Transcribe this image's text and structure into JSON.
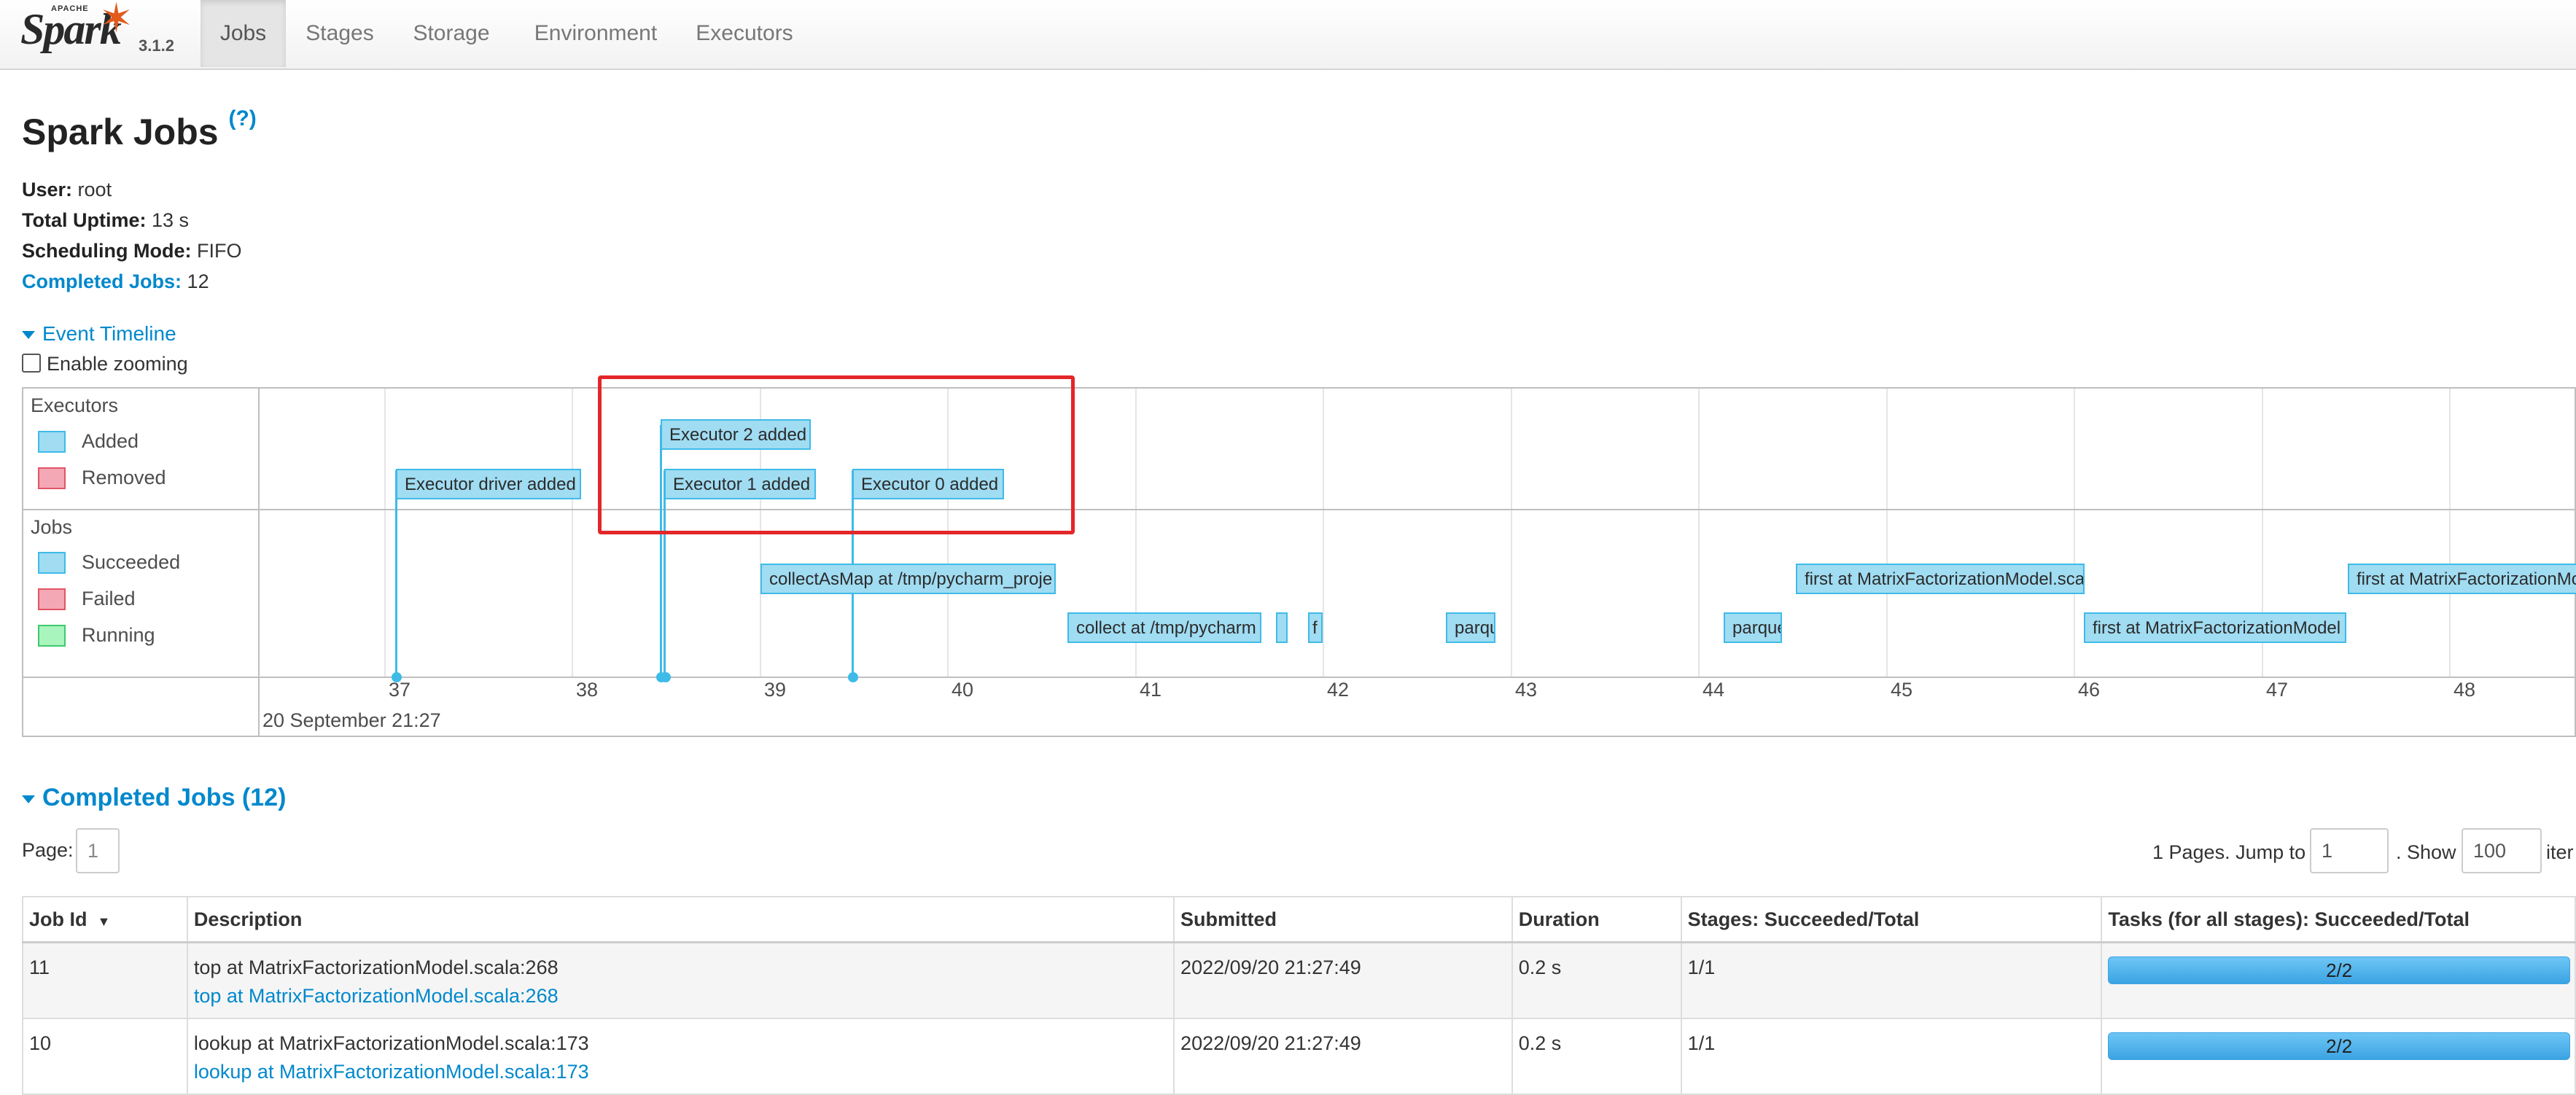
{
  "brand": {
    "apache": "APACHE",
    "name": "Spark",
    "version": "3.1.2"
  },
  "nav": {
    "tabs": [
      "Jobs",
      "Stages",
      "Storage",
      "Environment",
      "Executors"
    ],
    "active": "Jobs"
  },
  "page": {
    "title": "Spark Jobs",
    "help": "(?)",
    "user_label": "User:",
    "user_value": "root",
    "uptime_label": "Total Uptime:",
    "uptime_value": "13 s",
    "mode_label": "Scheduling Mode:",
    "mode_value": "FIFO",
    "completed_label": "Completed Jobs:",
    "completed_value": "12"
  },
  "timeline": {
    "toggle_label": "Event Timeline",
    "zoom_label": "Enable zooming",
    "executors_group": "Executors",
    "added": "Added",
    "removed": "Removed",
    "jobs_group": "Jobs",
    "succeeded": "Succeeded",
    "failed": "Failed",
    "running": "Running",
    "executor_events": [
      "Executor driver added",
      "Executor 2 added",
      "Executor 1 added",
      "Executor 0 added"
    ],
    "job_events": [
      "collectAsMap at /tmp/pycharm_proje",
      "collect at /tmp/pycharm",
      "",
      "f",
      "parqu",
      "parque",
      "first at MatrixFactorizationModel.sca",
      "first at MatrixFactorizationModel",
      "first at MatrixFactorizationMo"
    ],
    "ticks": [
      "37",
      "38",
      "39",
      "40",
      "41",
      "42",
      "43",
      "44",
      "45",
      "46",
      "47",
      "48"
    ],
    "date_label": "20 September 21:27",
    "colors": {
      "added": "#a0dcf2",
      "removed": "#f4a7b4",
      "running": "#a8f5bd",
      "highlight": "#e3262a"
    }
  },
  "completed": {
    "header": "Completed Jobs (12)",
    "page_label": "Page:",
    "page_value": "1",
    "pages_text": "1 Pages. Jump to",
    "jump_value": "1",
    "show_text": ". Show",
    "show_value": "100",
    "items_text": "iter",
    "columns": [
      "Job Id",
      "Description",
      "Submitted",
      "Duration",
      "Stages: Succeeded/Total",
      "Tasks (for all stages): Succeeded/Total"
    ],
    "sort_icon": "▼",
    "rows": [
      {
        "id": "11",
        "desc": "top at MatrixFactorizationModel.scala:268",
        "link": "top at MatrixFactorizationModel.scala:268",
        "submitted": "2022/09/20 21:27:49",
        "duration": "0.2 s",
        "stages": "1/1",
        "tasks": "2/2",
        "progress": 1.0
      },
      {
        "id": "10",
        "desc": "lookup at MatrixFactorizationModel.scala:173",
        "link": "lookup at MatrixFactorizationModel.scala:173",
        "submitted": "2022/09/20 21:27:49",
        "duration": "0.2 s",
        "stages": "1/1",
        "tasks": "2/2",
        "progress": 1.0
      }
    ]
  }
}
